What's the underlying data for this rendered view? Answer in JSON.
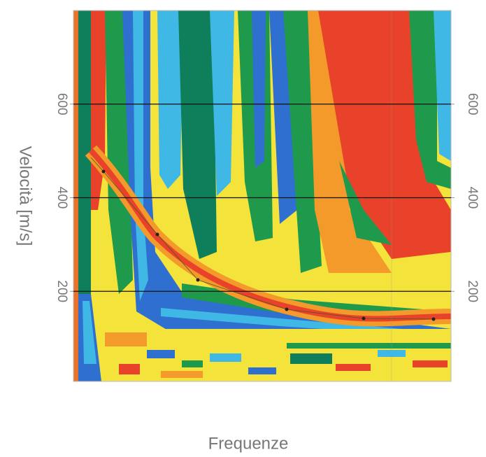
{
  "chart_data": {
    "type": "heatmap",
    "xlabel": "Frequenze",
    "ylabel": "Velocità [m/s]",
    "ylim": [
      0,
      800
    ],
    "yticks": [
      200,
      400,
      600
    ],
    "grid": true
  }
}
